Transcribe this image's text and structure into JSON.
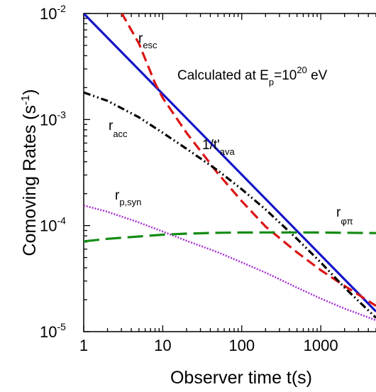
{
  "chart_data": {
    "type": "line",
    "title": "",
    "xlabel": "Observer time t(s)",
    "ylabel_main": "Comoving Rates (s",
    "ylabel_sup": "-1",
    "ylabel_close": ")",
    "xscale": "log",
    "yscale": "log",
    "xlim": [
      1,
      5000
    ],
    "ylim": [
      1e-05,
      0.01
    ],
    "x_ticks": [
      {
        "value": 1,
        "label": "1"
      },
      {
        "value": 10,
        "label": "10"
      },
      {
        "value": 100,
        "label": "100"
      },
      {
        "value": 1000,
        "label": "1000"
      }
    ],
    "y_ticks": [
      {
        "value": 0.01,
        "base": "10",
        "exp": "-2"
      },
      {
        "value": 0.001,
        "base": "10",
        "exp": "-3"
      },
      {
        "value": 0.0001,
        "base": "10",
        "exp": "-4"
      },
      {
        "value": 1e-05,
        "base": "10",
        "exp": "-5"
      }
    ],
    "annotation": {
      "prefix": "Calculated at E",
      "sub": "p",
      "mid": "=10",
      "sup": "20",
      "suffix": " eV"
    },
    "series": [
      {
        "key": "ava",
        "label_main": "1/t'",
        "label_sub": "ava",
        "color": "#1414c8",
        "dash": "solid",
        "points": [
          [
            1,
            0.01
          ],
          [
            5000,
            1.55e-05
          ]
        ]
      },
      {
        "key": "esc",
        "label_main": "r",
        "label_sub": "esc",
        "color": "#dc1414",
        "dash": "dashed",
        "points": [
          [
            3,
            0.0102
          ],
          [
            5,
            0.0052
          ],
          [
            8,
            0.0022
          ],
          [
            10,
            0.0016
          ],
          [
            20,
            0.00075
          ],
          [
            50,
            0.00031
          ],
          [
            100,
            0.00017
          ],
          [
            200,
            9.8e-05
          ],
          [
            500,
            5.6e-05
          ],
          [
            1000,
            3.8e-05
          ],
          [
            2000,
            2.7e-05
          ],
          [
            5000,
            1.75e-05
          ]
        ]
      },
      {
        "key": "acc",
        "label_main": "r",
        "label_sub": "acc",
        "color": "#000000",
        "dash": "dashdotdot",
        "points": [
          [
            1,
            0.0018
          ],
          [
            2,
            0.0015
          ],
          [
            5,
            0.00105
          ],
          [
            10,
            0.00075
          ],
          [
            20,
            0.00053
          ],
          [
            50,
            0.00033
          ],
          [
            100,
            0.00022
          ],
          [
            200,
            0.000142
          ],
          [
            500,
            7.5e-05
          ],
          [
            1000,
            4.5e-05
          ],
          [
            2000,
            2.6e-05
          ],
          [
            5000,
            1.35e-05
          ]
        ]
      },
      {
        "key": "syn",
        "label_main": "r",
        "label_sub": "p,syn",
        "color": "#a832d2",
        "dash": "dotted",
        "points": [
          [
            1,
            0.000155
          ],
          [
            2,
            0.000135
          ],
          [
            5,
            0.000107
          ],
          [
            10,
            8.8e-05
          ],
          [
            20,
            7.2e-05
          ],
          [
            50,
            5.6e-05
          ],
          [
            100,
            4.5e-05
          ],
          [
            200,
            3.6e-05
          ],
          [
            500,
            2.6e-05
          ],
          [
            1000,
            2.05e-05
          ],
          [
            2000,
            1.65e-05
          ],
          [
            5000,
            1.28e-05
          ]
        ]
      },
      {
        "key": "phipi",
        "label_main": "r",
        "label_sub": "φπ",
        "color": "#148c14",
        "dash": "longdash",
        "points": [
          [
            1,
            7.1e-05
          ],
          [
            2,
            7.5e-05
          ],
          [
            5,
            7.9e-05
          ],
          [
            10,
            8.2e-05
          ],
          [
            20,
            8.4e-05
          ],
          [
            50,
            8.55e-05
          ],
          [
            100,
            8.6e-05
          ],
          [
            200,
            8.62e-05
          ],
          [
            500,
            8.62e-05
          ],
          [
            1000,
            8.6e-05
          ],
          [
            2000,
            8.55e-05
          ],
          [
            5000,
            8.5e-05
          ]
        ]
      }
    ]
  }
}
